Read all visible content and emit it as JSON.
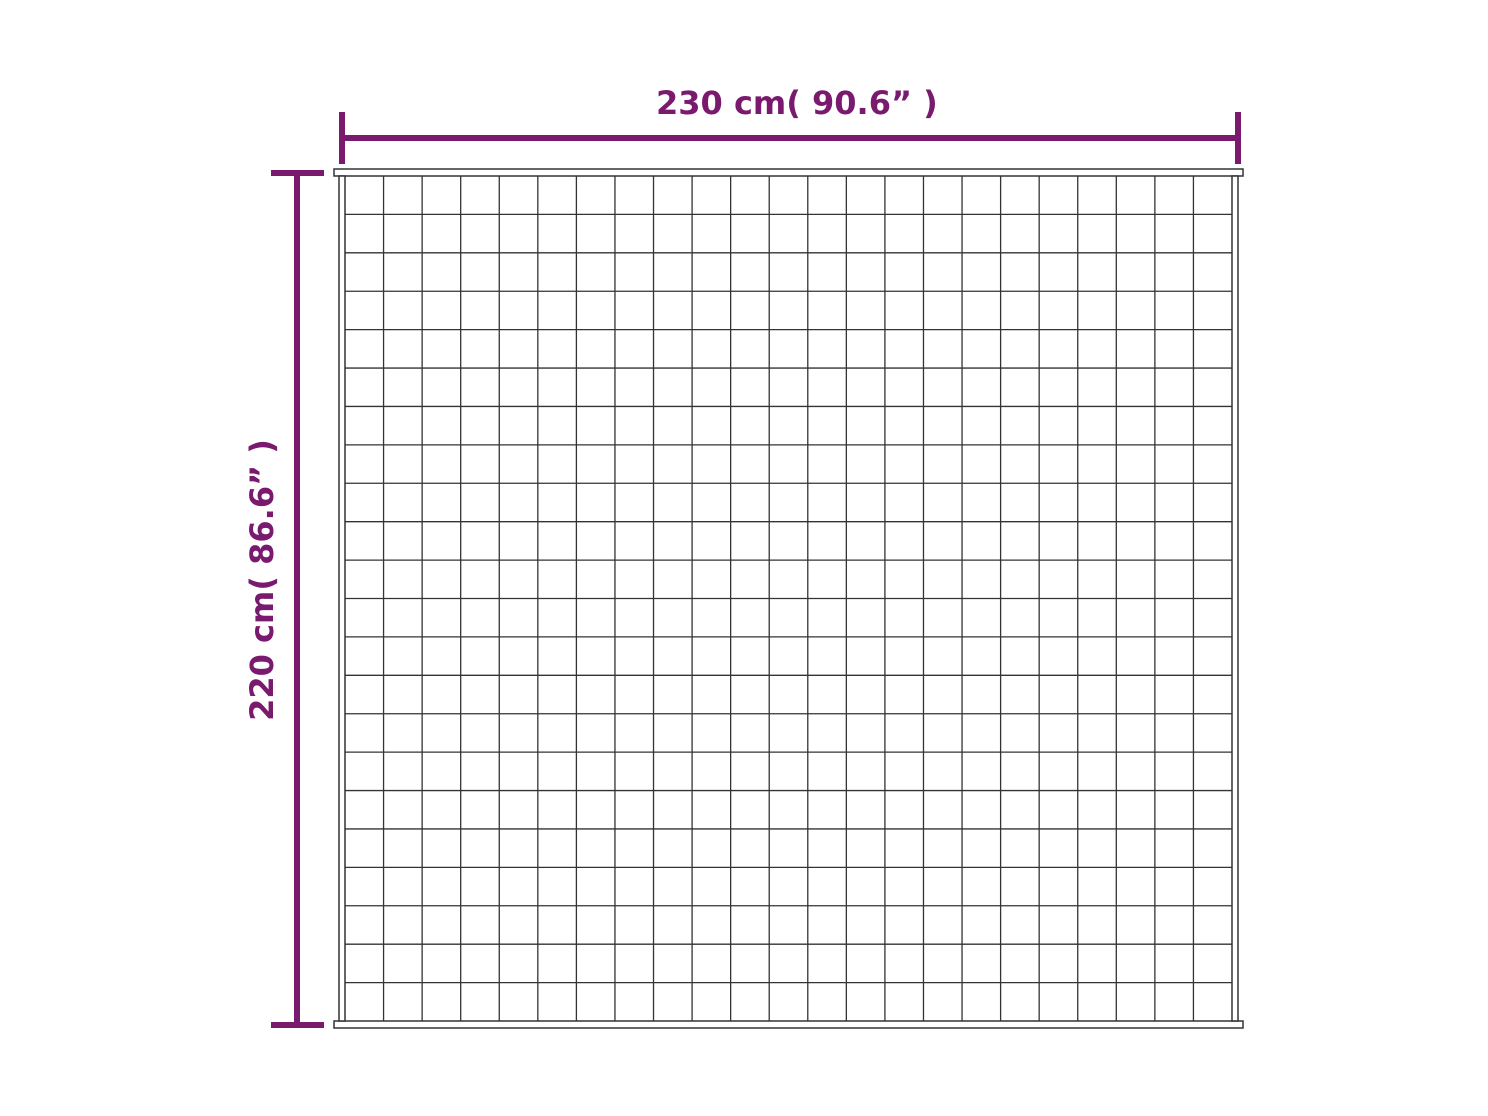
{
  "dimensions": {
    "width_label": "230 cm( 90.6” )",
    "height_label": "220 cm( 86.6” )"
  },
  "product": {
    "grid_columns": 23,
    "grid_rows": 22
  },
  "colors": {
    "dimension": "#7a1a6e",
    "outline": "#333333"
  }
}
